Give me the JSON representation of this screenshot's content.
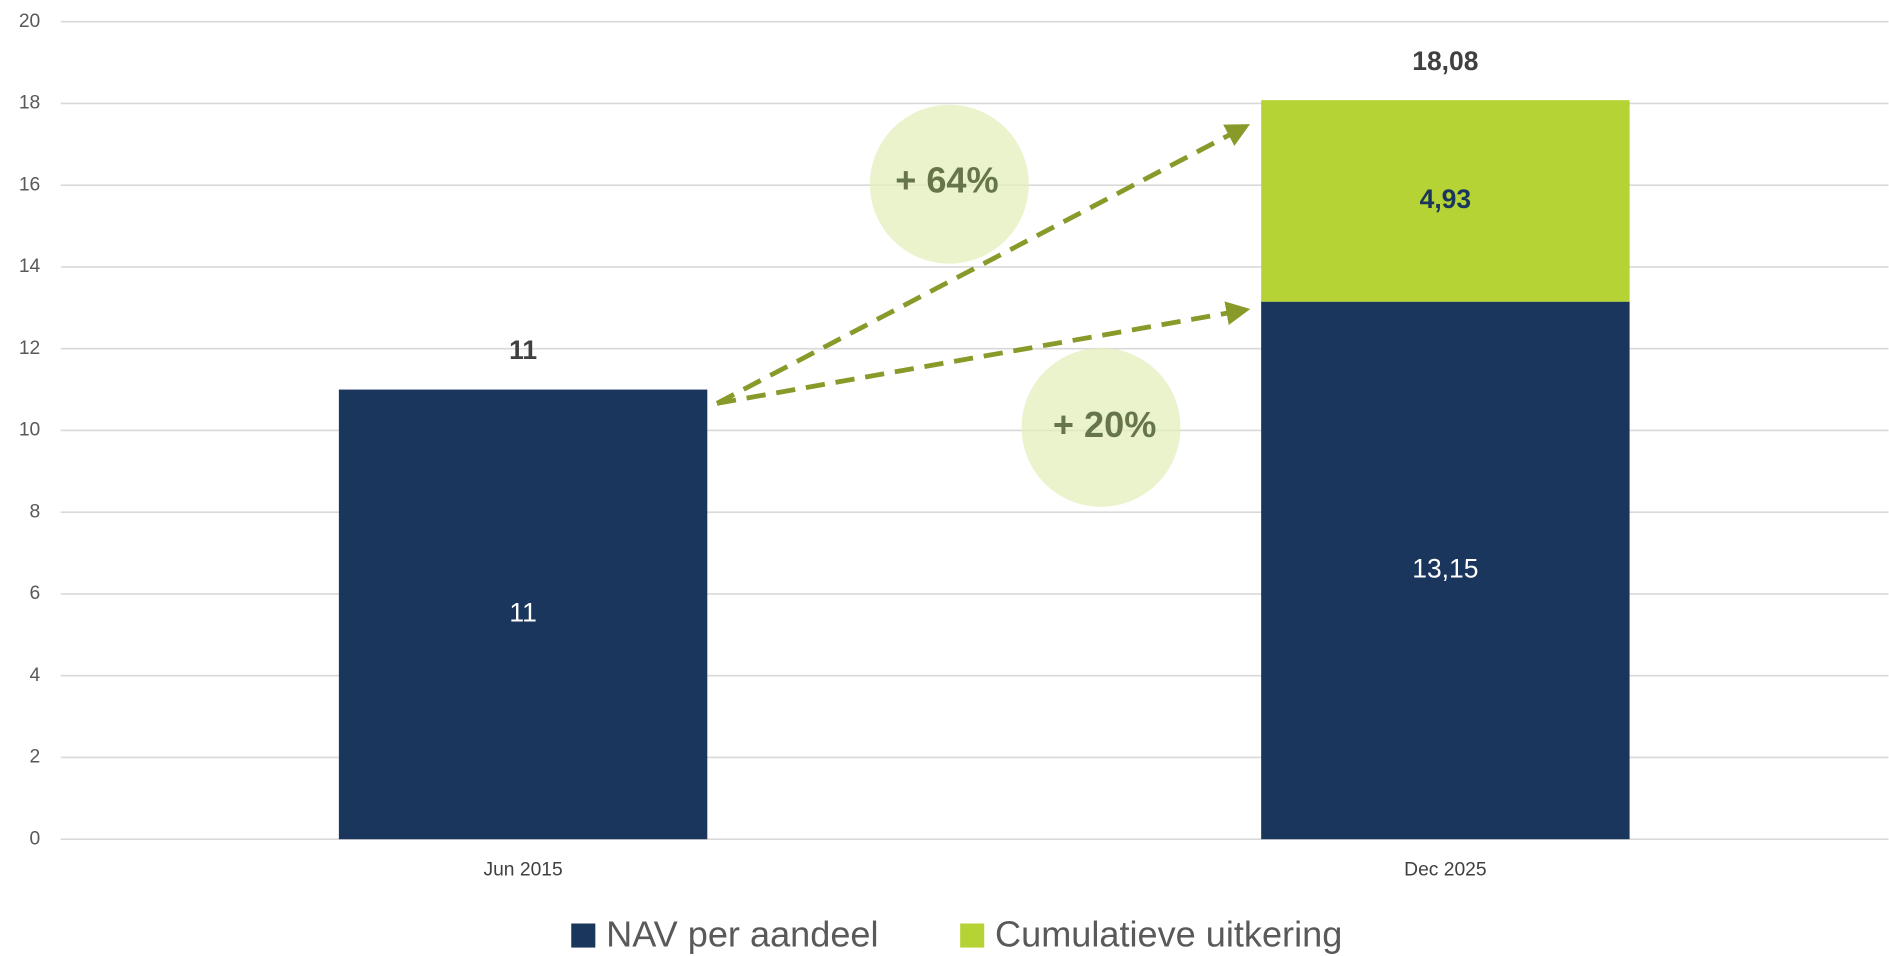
{
  "chart_data": {
    "type": "stacked_bar",
    "categories": [
      "Jun 2015",
      "Dec 2025"
    ],
    "series": [
      {
        "name": "NAV per aandeel",
        "color": "#1b365d",
        "values": [
          11,
          13.15
        ],
        "value_labels": [
          "11",
          "13,15"
        ],
        "label_color": "#ffffff"
      },
      {
        "name": "Cumulatieve uitkering",
        "color": "#b5d334",
        "values": [
          null,
          4.93
        ],
        "value_labels": [
          null,
          "4,93"
        ],
        "label_color": "#1b365d"
      }
    ],
    "totals": [
      11,
      18.08
    ],
    "total_labels": [
      "11",
      "18,08"
    ],
    "annotations": [
      "+ 64%",
      "+ 20%"
    ],
    "ylim": [
      0,
      20
    ],
    "yticks": [
      0,
      2,
      4,
      6,
      8,
      10,
      12,
      14,
      16,
      18,
      20
    ],
    "grid": true,
    "legend": "bottom"
  }
}
